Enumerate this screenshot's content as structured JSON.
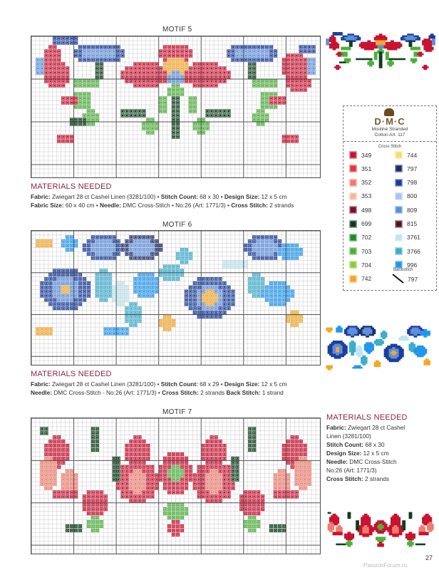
{
  "motifs": [
    {
      "title": "MOTIF 5",
      "materials": {
        "heading": "MATERIALS NEEDED",
        "line1": [
          [
            "Fabric:",
            " Zwiegart 28 ct Cashel Linen (3281/100) • "
          ],
          [
            "Stitch Count:",
            " 68 x 30 • "
          ],
          [
            "Design Size:",
            " 12 x 5 cm"
          ]
        ],
        "line2": [
          [
            "Fabric Size:",
            " 60 x 40 cm • "
          ],
          [
            "Needle:",
            " DMC Cross-Stitch • No:26 (Art: 1771/3) • "
          ],
          [
            "Cross Stitch:",
            " 2 strands"
          ]
        ]
      }
    },
    {
      "title": "MOTIF 6",
      "materials": {
        "heading": "MATERIALS NEEDED",
        "line1": [
          [
            "Fabric:",
            " Zwiegart 28 ct Cashel Linen (3281/100) • "
          ],
          [
            "Stitch Count:",
            " 68 x 29 • "
          ],
          [
            "Design Size:",
            " 12 x 5 cm"
          ]
        ],
        "line2": [
          [
            "Needle:",
            " DMC Cross-Stitch - No:26 (Art: 1771/3) • "
          ],
          [
            "Cross Stitch:",
            " 2 strands "
          ],
          [
            "Back Stitch:",
            " 1 strand"
          ]
        ]
      }
    },
    {
      "title": "MOTIF 7",
      "materials": {
        "heading": "MATERIALS NEEDED",
        "lines": [
          [
            "Fabric:",
            " Zwiegart 28 ct Cashel"
          ],
          [
            "",
            "Linen (3281/100)"
          ],
          [
            "Stitch Count:",
            " 68 x 30"
          ],
          [
            "Design Size:",
            " 12 x 5 cm"
          ],
          [
            "Needle:",
            " DMC Cross-Stitch"
          ],
          [
            "",
            "No:26 (Art: 1771/3)"
          ],
          [
            "Cross Stitch:",
            " 2 strands"
          ]
        ]
      }
    }
  ],
  "key": {
    "brand": "D·M·C",
    "subtitle1": "Mouliné Stranded",
    "subtitle2": "Cotton Art. 117",
    "section": "Cross Stitch",
    "backstitch_label": "Backstitch",
    "backstitch_code": "797",
    "left": [
      {
        "code": "349",
        "color": "#c8102e"
      },
      {
        "code": "351",
        "color": "#e8323c"
      },
      {
        "code": "352",
        "color": "#f07a6a"
      },
      {
        "code": "353",
        "color": "#f7b59e"
      },
      {
        "code": "498",
        "color": "#7a1020"
      },
      {
        "code": "699",
        "color": "#0c3d1a"
      },
      {
        "code": "702",
        "color": "#1f8a2a"
      },
      {
        "code": "703",
        "color": "#4caf3a"
      },
      {
        "code": "704",
        "color": "#8ccc3a"
      },
      {
        "code": "742",
        "color": "#f5a623"
      }
    ],
    "right": [
      {
        "code": "744",
        "color": "#f8dc6a"
      },
      {
        "code": "797",
        "color": "#1c2a6a"
      },
      {
        "code": "798",
        "color": "#1a3c9a"
      },
      {
        "code": "800",
        "color": "#a8c4ec"
      },
      {
        "code": "809",
        "color": "#5a8edc"
      },
      {
        "code": "815",
        "color": "#5a1020"
      },
      {
        "code": "3761",
        "color": "#bfe6f0"
      },
      {
        "code": "3766",
        "color": "#3aaccc"
      },
      {
        "code": "996",
        "color": "#1e96ee"
      }
    ]
  },
  "page_number": "27",
  "watermark": "PassionForum.ru"
}
